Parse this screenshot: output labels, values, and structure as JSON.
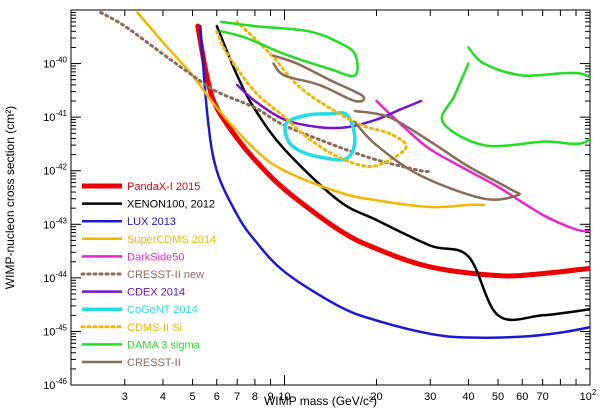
{
  "chart_data": {
    "type": "line",
    "title": "",
    "xlabel": "WIMP mass (GeV/c²)",
    "ylabel": "WIMP-nucleon cross section (cm²)",
    "x_scale": "log",
    "y_scale": "log",
    "xlim": [
      2,
      100
    ],
    "ylim": [
      1e-46,
      1e-39
    ],
    "grid": false,
    "legend_position": "bottom-left",
    "x_tick_labels": [
      {
        "v": 3,
        "t": "3"
      },
      {
        "v": 4,
        "t": "4"
      },
      {
        "v": 5,
        "t": "5"
      },
      {
        "v": 6,
        "t": "6"
      },
      {
        "v": 7,
        "t": "7"
      },
      {
        "v": 8,
        "t": "8"
      },
      {
        "v": 9,
        "t": "9"
      },
      {
        "v": 10,
        "t": "10"
      },
      {
        "v": 20,
        "t": "20"
      },
      {
        "v": 30,
        "t": "30"
      },
      {
        "v": 40,
        "t": "40"
      },
      {
        "v": 50,
        "t": "50"
      },
      {
        "v": 60,
        "t": "60"
      },
      {
        "v": 70,
        "t": "70"
      }
    ],
    "x_tick_last": {
      "v": 100,
      "base": "10",
      "exp": "2"
    },
    "y_tick_labels": [
      {
        "v": 1e-46,
        "base": "10",
        "exp": "-46"
      },
      {
        "v": 1e-45,
        "base": "10",
        "exp": "-45"
      },
      {
        "v": 1e-44,
        "base": "10",
        "exp": "-44"
      },
      {
        "v": 1e-43,
        "base": "10",
        "exp": "-43"
      },
      {
        "v": 1e-42,
        "base": "10",
        "exp": "-42"
      },
      {
        "v": 1e-41,
        "base": "10",
        "exp": "-41"
      },
      {
        "v": 1e-40,
        "base": "10",
        "exp": "-40"
      }
    ],
    "series": [
      {
        "name": "PandaX-I 2015",
        "color": "#ee0000",
        "style": "solid",
        "width": 5,
        "points": [
          [
            5.2,
            5e-40
          ],
          [
            5.6,
            5e-41
          ],
          [
            6,
            1.5e-41
          ],
          [
            7,
            4e-42
          ],
          [
            8,
            1.6e-42
          ],
          [
            10,
            4.5e-43
          ],
          [
            15,
            8e-44
          ],
          [
            20,
            3.5e-44
          ],
          [
            30,
            1.6e-44
          ],
          [
            50,
            1.1e-44
          ],
          [
            70,
            1.2e-44
          ],
          [
            100,
            1.5e-44
          ]
        ]
      },
      {
        "name": "XENON100, 2012",
        "color": "#000000",
        "style": "solid",
        "width": 2.5,
        "points": [
          [
            6,
            5e-40
          ],
          [
            7,
            6e-41
          ],
          [
            8,
            1.4e-41
          ],
          [
            10,
            2.5e-42
          ],
          [
            15,
            2.8e-43
          ],
          [
            20,
            1.2e-43
          ],
          [
            30,
            4e-44
          ],
          [
            40,
            2.5e-44
          ],
          [
            50,
            2e-45
          ],
          [
            70,
            2e-45
          ],
          [
            100,
            2.6e-45
          ]
        ]
      },
      {
        "name": "LUX 2013",
        "color": "#1a1ad6",
        "style": "solid",
        "width": 2.5,
        "points": [
          [
            5.3,
            5e-40
          ],
          [
            5.6,
            1e-41
          ],
          [
            6,
            1e-42
          ],
          [
            7,
            1.5e-43
          ],
          [
            8,
            5e-44
          ],
          [
            10,
            1.3e-44
          ],
          [
            15,
            3e-45
          ],
          [
            20,
            1.6e-45
          ],
          [
            30,
            9e-46
          ],
          [
            40,
            7.7e-46
          ],
          [
            60,
            8e-46
          ],
          [
            80,
            9.5e-46
          ],
          [
            100,
            1.2e-45
          ]
        ]
      },
      {
        "name": "SuperCDMS 2014",
        "color": "#f2b600",
        "style": "solid",
        "width": 2.5,
        "points": [
          [
            3.3,
            9e-40
          ],
          [
            4,
            2.5e-40
          ],
          [
            5,
            6e-41
          ],
          [
            6,
            1.5e-41
          ],
          [
            8,
            2.5e-42
          ],
          [
            10,
            1e-42
          ],
          [
            15,
            4e-43
          ],
          [
            20,
            2.8e-43
          ],
          [
            30,
            2.1e-43
          ],
          [
            40,
            2.3e-43
          ],
          [
            45,
            2.3e-43
          ]
        ]
      },
      {
        "name": "DarkSide50",
        "color": "#ee22cc",
        "style": "solid",
        "width": 2.5,
        "points": [
          [
            20,
            2e-41
          ],
          [
            25,
            6e-42
          ],
          [
            30,
            2.5e-42
          ],
          [
            40,
            1e-42
          ],
          [
            50,
            5e-43
          ],
          [
            70,
            1.5e-43
          ],
          [
            90,
            8e-44
          ],
          [
            100,
            7.5e-44
          ]
        ]
      },
      {
        "name": "CRESST-II new",
        "color": "#8b6b5a",
        "style": "dot",
        "width": 3,
        "points": [
          [
            2.5,
            9e-40
          ],
          [
            3,
            5e-40
          ],
          [
            4,
            1.5e-40
          ],
          [
            5,
            6e-41
          ],
          [
            6,
            3e-41
          ],
          [
            8,
            1.5e-41
          ],
          [
            10,
            7e-42
          ],
          [
            15,
            2.8e-42
          ],
          [
            20,
            1.6e-42
          ],
          [
            28,
            1e-42
          ],
          [
            30,
            1e-42
          ]
        ]
      },
      {
        "name": "CDEX 2014",
        "color": "#7711cc",
        "style": "solid",
        "width": 2.5,
        "points": [
          [
            7,
            4e-41
          ],
          [
            8,
            2e-41
          ],
          [
            10,
            9e-42
          ],
          [
            13,
            6.5e-42
          ],
          [
            16,
            6.5e-42
          ],
          [
            20,
            9e-42
          ],
          [
            24,
            1.4e-41
          ],
          [
            28,
            2e-41
          ]
        ]
      },
      {
        "name": "CoGeNT 2014",
        "color": "#22dde8",
        "style": "solid",
        "width": 3.5,
        "closed": true,
        "points": [
          [
            10.2,
            8e-42
          ],
          [
            12,
            1.1e-41
          ],
          [
            14,
            1.15e-41
          ],
          [
            16,
            1.1e-41
          ],
          [
            17,
            4e-42
          ],
          [
            16,
            1.7e-42
          ],
          [
            13,
            1.8e-42
          ],
          [
            11,
            2.5e-42
          ],
          [
            10.2,
            4e-42
          ]
        ]
      },
      {
        "name": "CDMS-II Si",
        "color": "#f2b600",
        "style": "dot",
        "width": 3,
        "points": [
          [
            6,
            4e-40
          ],
          [
            6.5,
            1.5e-40
          ],
          [
            8,
            3e-41
          ],
          [
            10,
            1e-41
          ],
          [
            12,
            4e-42
          ],
          [
            15,
            1.8e-42
          ],
          [
            19,
            1.2e-42
          ],
          [
            23,
            1.8e-42
          ],
          [
            25,
            3e-42
          ],
          [
            22,
            5e-42
          ],
          [
            18,
            7e-42
          ],
          [
            14,
            1.5e-41
          ],
          [
            11,
            4e-41
          ],
          [
            9,
            1.5e-40
          ],
          [
            7,
            6e-40
          ]
        ]
      },
      {
        "name": "DAMA 3 sigma",
        "color": "#22dd22",
        "style": "solid",
        "width": 2.5,
        "points": [
          [
            6.2,
            6e-40
          ],
          [
            8,
            5e-40
          ],
          [
            12,
            4e-40
          ],
          [
            15,
            2.5e-40
          ],
          [
            17,
            1.5e-40
          ],
          [
            17,
            6e-41
          ],
          [
            14,
            8e-41
          ],
          [
            10,
            1.5e-40
          ],
          [
            7.5,
            3e-40
          ],
          [
            6.2,
            4e-40
          ]
        ]
      },
      {
        "name": "DAMA 3 sigma high mass",
        "legend": false,
        "color": "#22dd22",
        "style": "solid",
        "width": 2.5,
        "points": [
          [
            40,
            2e-40
          ],
          [
            45,
            1e-40
          ],
          [
            60,
            6e-41
          ],
          [
            100,
            5.5e-41
          ],
          [
            100,
            4e-42
          ],
          [
            70,
            3.5e-42
          ],
          [
            45,
            3e-42
          ],
          [
            33,
            8e-42
          ],
          [
            36,
            2.5e-41
          ],
          [
            40,
            1e-40
          ]
        ]
      },
      {
        "name": "CRESST-II",
        "color": "#8b6b5a",
        "style": "solid",
        "width": 2.5,
        "points": [
          [
            9.2,
            1.4e-40
          ],
          [
            11,
            1e-40
          ],
          [
            14,
            5e-41
          ],
          [
            18,
            2.5e-41
          ],
          [
            17,
            2e-41
          ],
          [
            13,
            4e-41
          ],
          [
            10,
            6e-41
          ],
          [
            9.2,
            1e-40
          ]
        ]
      },
      {
        "name": "CRESST-II lower",
        "legend": false,
        "color": "#8b6b5a",
        "style": "solid",
        "width": 2.5,
        "points": [
          [
            17,
            1.3e-41
          ],
          [
            22,
            1e-41
          ],
          [
            30,
            3.5e-42
          ],
          [
            40,
            1.2e-42
          ],
          [
            55,
            4.5e-43
          ],
          [
            58,
            3.5e-43
          ],
          [
            45,
            3e-43
          ],
          [
            28,
            8e-43
          ],
          [
            20,
            3e-42
          ],
          [
            17,
            8e-42
          ]
        ]
      }
    ]
  }
}
